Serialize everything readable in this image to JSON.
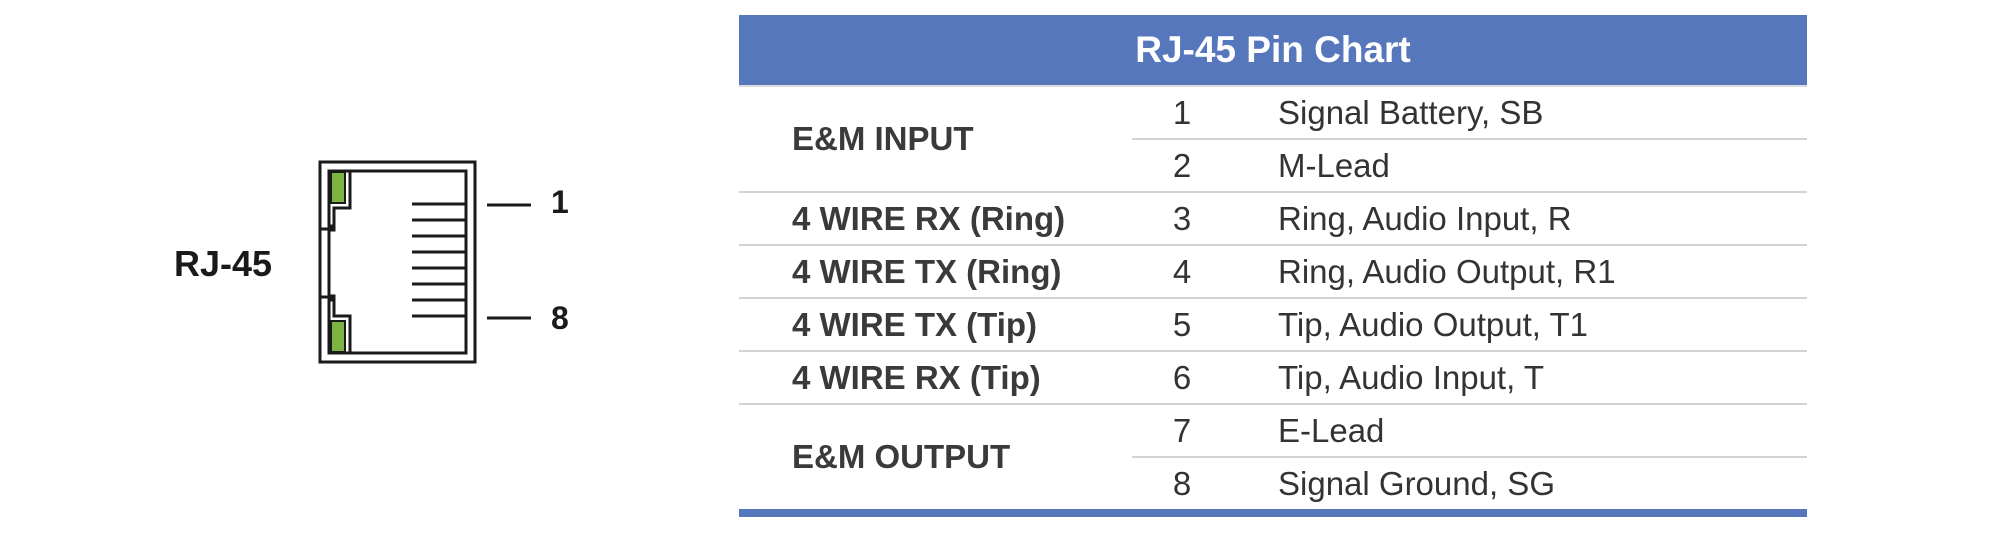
{
  "diagram": {
    "connector_name": "RJ-45",
    "pin_first": "1",
    "pin_last": "8",
    "led_color": "#7cb342",
    "outline_color": "#1a1a1a"
  },
  "table": {
    "title": "RJ-45 Pin Chart",
    "header_color": "#5777bd",
    "groups": [
      {
        "label": "E&M INPUT",
        "rows": [
          {
            "pin": "1",
            "signal": "Signal Battery, SB"
          },
          {
            "pin": "2",
            "signal": "M-Lead"
          }
        ]
      },
      {
        "label": "4 WIRE RX (Ring)",
        "rows": [
          {
            "pin": "3",
            "signal": "Ring, Audio Input, R"
          }
        ]
      },
      {
        "label": "4 WIRE TX (Ring)",
        "rows": [
          {
            "pin": "4",
            "signal": "Ring, Audio Output, R1"
          }
        ]
      },
      {
        "label": "4 WIRE TX (Tip)",
        "rows": [
          {
            "pin": "5",
            "signal": "Tip, Audio Output, T1"
          }
        ]
      },
      {
        "label": "4 WIRE RX (Tip)",
        "rows": [
          {
            "pin": "6",
            "signal": "Tip, Audio Input, T"
          }
        ]
      },
      {
        "label": "E&M OUTPUT",
        "rows": [
          {
            "pin": "7",
            "signal": "E-Lead"
          },
          {
            "pin": "8",
            "signal": "Signal Ground, SG"
          }
        ]
      }
    ]
  }
}
